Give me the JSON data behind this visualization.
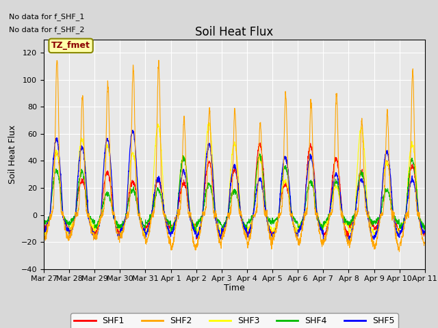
{
  "title": "Soil Heat Flux",
  "ylabel": "Soil Heat Flux",
  "xlabel": "Time",
  "annotations": [
    "No data for f_SHF_1",
    "No data for f_SHF_2"
  ],
  "legend_label": "TZ_fmet",
  "series_labels": [
    "SHF1",
    "SHF2",
    "SHF3",
    "SHF4",
    "SHF5"
  ],
  "series_colors": [
    "#ff0000",
    "#ffa500",
    "#ffff00",
    "#00bb00",
    "#0000ff"
  ],
  "ylim": [
    -40,
    130
  ],
  "yticks": [
    -40,
    -20,
    0,
    20,
    40,
    60,
    80,
    100,
    120
  ],
  "background_color": "#d8d8d8",
  "plot_bg_color": "#e8e8e8",
  "n_days": 15,
  "tick_labels": [
    "Mar 27",
    "Mar 28",
    "Mar 29",
    "Mar 30",
    "Mar 31",
    "Apr 1",
    "Apr 2",
    "Apr 3",
    "Apr 4",
    "Apr 5",
    "Apr 6",
    "Apr 7",
    "Apr 8",
    "Apr 9",
    "Apr 10",
    "Apr 11"
  ]
}
